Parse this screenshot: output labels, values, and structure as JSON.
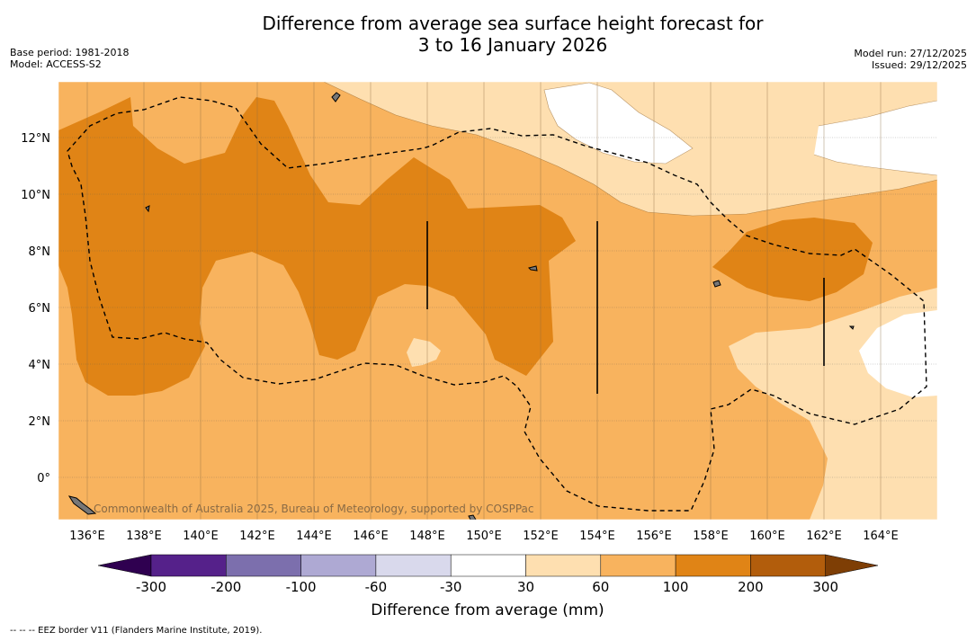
{
  "header": {
    "title_line1": "Difference from average sea surface height forecast for",
    "title_line2": "3 to 16 January 2026",
    "base_period": "Base period: 1981-2018",
    "model": "Model: ACCESS-S2",
    "model_run": "Model run: 27/12/2025",
    "issued": "Issued: 29/12/2025"
  },
  "map": {
    "lon_ticks": [
      "136°E",
      "138°E",
      "140°E",
      "142°E",
      "144°E",
      "146°E",
      "148°E",
      "150°E",
      "152°E",
      "154°E",
      "156°E",
      "158°E",
      "160°E",
      "162°E",
      "164°E"
    ],
    "lat_ticks": [
      "12°N",
      "10°N",
      "8°N",
      "6°N",
      "4°N",
      "2°N",
      "0°"
    ],
    "attribution": "Commonwealth of Australia 2025, Bureau of Meteorology, supported by COSPPac"
  },
  "colorbar": {
    "title": "Difference from average (mm)",
    "labels": [
      "-300",
      "-200",
      "-100",
      "-60",
      "-30",
      "30",
      "60",
      "100",
      "200",
      "300"
    ],
    "colors": [
      "#55218a",
      "#7c6fad",
      "#aea9d3",
      "#d9d9ec",
      "#ffffff",
      "#fedfb0",
      "#f8b35e",
      "#e08416",
      "#b25d0c"
    ],
    "under_color": "#2f0050",
    "over_color": "#7e3e05"
  },
  "legend": {
    "eez_text": "--  --  -- EEZ border V11 (Flanders Marine Institute, 2019)."
  },
  "palette": {
    "c30_60": "#fedfb0",
    "c60_100": "#f8b35e",
    "c100_200": "#e08416",
    "c_neutral": "#ffffff"
  }
}
